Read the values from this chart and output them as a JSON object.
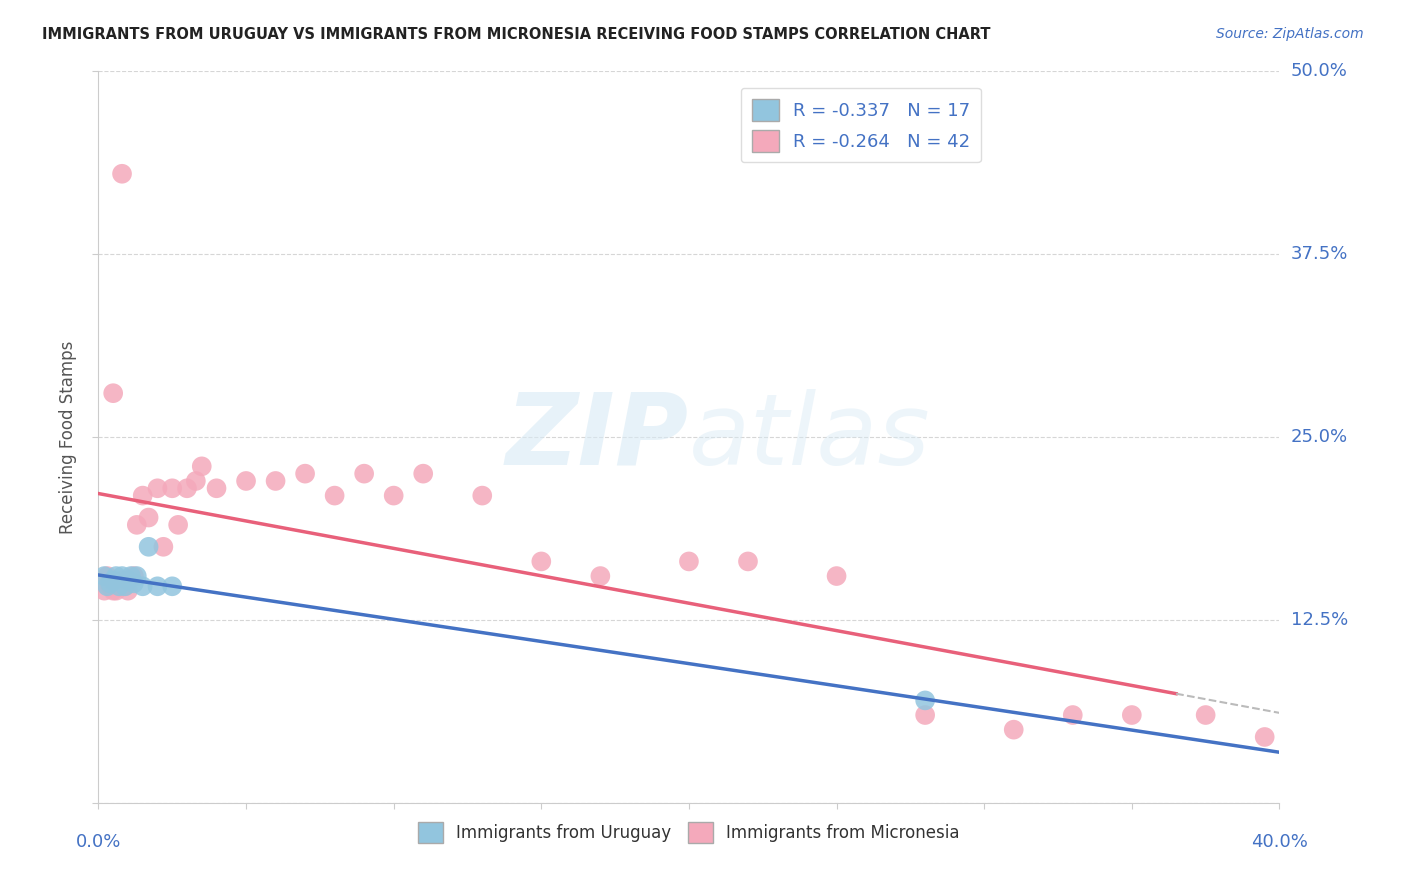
{
  "title": "IMMIGRANTS FROM URUGUAY VS IMMIGRANTS FROM MICRONESIA RECEIVING FOOD STAMPS CORRELATION CHART",
  "source": "Source: ZipAtlas.com",
  "ylabel": "Receiving Food Stamps",
  "legend_label1": "Immigrants from Uruguay",
  "legend_label2": "Immigrants from Micronesia",
  "R1": -0.337,
  "N1": 17,
  "R2": -0.264,
  "N2": 42,
  "xlim": [
    0.0,
    0.4
  ],
  "ylim": [
    0.0,
    0.5
  ],
  "yticks": [
    0.0,
    0.125,
    0.25,
    0.375,
    0.5
  ],
  "ytick_labels": [
    "",
    "12.5%",
    "25.0%",
    "37.5%",
    "50.0%"
  ],
  "color_uruguay": "#92C5DE",
  "color_micronesia": "#F4A9BB",
  "line_color_uruguay": "#4472C4",
  "line_color_micronesia": "#E8607A",
  "background_color": "#FFFFFF",
  "uruguay_x": [
    0.002,
    0.003,
    0.004,
    0.005,
    0.006,
    0.007,
    0.008,
    0.009,
    0.01,
    0.011,
    0.012,
    0.013,
    0.015,
    0.017,
    0.02,
    0.025,
    0.28
  ],
  "uruguay_y": [
    0.155,
    0.148,
    0.15,
    0.152,
    0.155,
    0.148,
    0.155,
    0.148,
    0.152,
    0.155,
    0.15,
    0.155,
    0.148,
    0.175,
    0.148,
    0.148,
    0.07
  ],
  "micronesia_x": [
    0.002,
    0.003,
    0.004,
    0.005,
    0.006,
    0.007,
    0.008,
    0.009,
    0.01,
    0.012,
    0.013,
    0.015,
    0.017,
    0.02,
    0.022,
    0.025,
    0.027,
    0.03,
    0.033,
    0.035,
    0.04,
    0.05,
    0.06,
    0.07,
    0.08,
    0.09,
    0.1,
    0.11,
    0.13,
    0.15,
    0.17,
    0.2,
    0.22,
    0.25,
    0.28,
    0.31,
    0.33,
    0.35,
    0.375,
    0.395,
    0.005,
    0.008
  ],
  "micronesia_y": [
    0.145,
    0.155,
    0.148,
    0.145,
    0.145,
    0.148,
    0.152,
    0.148,
    0.145,
    0.155,
    0.19,
    0.21,
    0.195,
    0.215,
    0.175,
    0.215,
    0.19,
    0.215,
    0.22,
    0.23,
    0.215,
    0.22,
    0.22,
    0.225,
    0.21,
    0.225,
    0.21,
    0.225,
    0.21,
    0.165,
    0.155,
    0.165,
    0.165,
    0.155,
    0.06,
    0.05,
    0.06,
    0.06,
    0.06,
    0.045,
    0.28,
    0.43
  ]
}
